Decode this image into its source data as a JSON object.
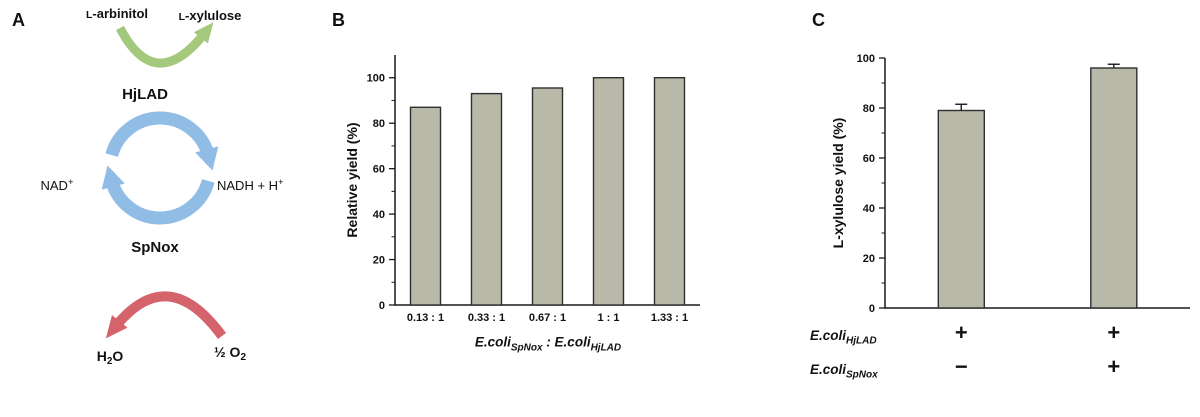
{
  "figure": {
    "panels": [
      {
        "label": "A"
      },
      {
        "label": "B"
      },
      {
        "label": "C"
      }
    ]
  },
  "diagram": {
    "substrate_top": {
      "smallcap": "L",
      "rest": "-arbinitol"
    },
    "product_top": {
      "smallcap": "L",
      "rest": "-xylulose"
    },
    "enzyme_top": "HjLAD",
    "cofactor_left": {
      "base": "NAD",
      "sup": "+"
    },
    "cofactor_right": {
      "base": "NADH + H",
      "sup": "+"
    },
    "enzyme_bottom": "SpNox",
    "water": {
      "base": "H",
      "sub": "2",
      "rest": "O"
    },
    "oxygen": {
      "base": "½ O",
      "sub": "2"
    },
    "colors": {
      "substrate_arrow": "#a4c87c",
      "cycle_arrow": "#90bce5",
      "oxidase_arrow": "#d5636c"
    }
  },
  "chart_data": [
    {
      "type": "bar",
      "panel": "B",
      "title": "",
      "ylabel": "Relative yield (%)",
      "xlabel": "E.coliSpNox : E.coliHjLAD",
      "xlabel_parts": [
        {
          "base": "E.coli",
          "sub": "SpNox"
        },
        {
          "sep": " : "
        },
        {
          "base": "E.coli",
          "sub": "HjLAD"
        }
      ],
      "categories": [
        "0.13 : 1",
        "0.33 : 1",
        "0.67 : 1",
        "1 : 1",
        "1.33 : 1"
      ],
      "values": [
        87,
        93,
        95.5,
        100,
        100
      ],
      "ylim": [
        0,
        110
      ],
      "yticks": [
        0,
        20,
        40,
        60,
        80,
        100
      ],
      "grid": false,
      "legend": "none",
      "bar_color": "#b9b9aa",
      "bar_border": "#2f2f2f"
    },
    {
      "type": "bar",
      "panel": "C",
      "title": "",
      "ylabel": "L-xylulose yield (%)",
      "values": [
        79,
        96
      ],
      "errors": [
        2.5,
        1.5
      ],
      "ylim": [
        0,
        100
      ],
      "yticks": [
        0,
        20,
        40,
        60,
        80,
        100
      ],
      "grid": false,
      "legend": "none",
      "bar_color": "#b9b9aa",
      "bar_border": "#2f2f2f",
      "condition_rows": [
        {
          "label": {
            "base": "E.coli",
            "sub": "HjLAD"
          },
          "values": [
            "+",
            "+"
          ]
        },
        {
          "label": {
            "base": "E.coli",
            "sub": "SpNox"
          },
          "values": [
            "−",
            "+"
          ]
        }
      ]
    }
  ]
}
